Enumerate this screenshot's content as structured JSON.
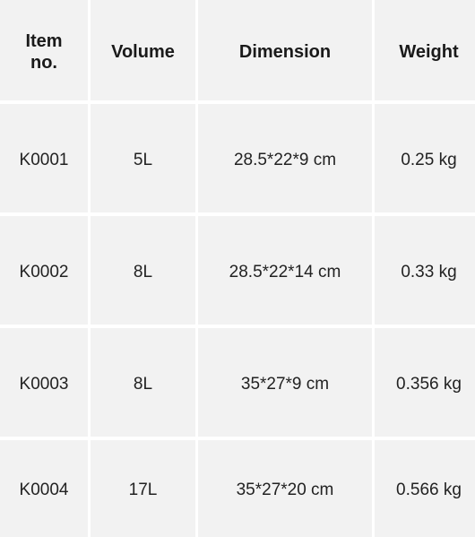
{
  "table": {
    "headers": [
      "Item\nno.",
      "Volume",
      "Dimension",
      "Weight"
    ],
    "rows": [
      [
        "K0001",
        "5L",
        "28.5*22*9 cm",
        "0.25 kg"
      ],
      [
        "K0002",
        "8L",
        "28.5*22*14 cm",
        "0.33 kg"
      ],
      [
        "K0003",
        "8L",
        "35*27*9 cm",
        "0.356 kg"
      ],
      [
        "K0004",
        "17L",
        "35*27*20 cm",
        "0.566 kg"
      ]
    ]
  }
}
